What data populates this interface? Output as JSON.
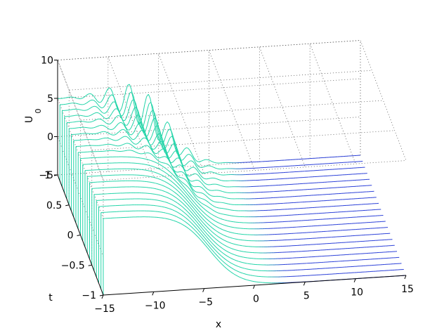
{
  "chart_data": {
    "type": "surface-waterfall",
    "title": "",
    "xlabel": "x",
    "ylabel": "t",
    "zlabel_main": "U",
    "zlabel_sub": "0",
    "xlim": [
      -15,
      15
    ],
    "tlim": [
      -1,
      1
    ],
    "zlim": [
      -5,
      10
    ],
    "x_ticks": [
      "−15",
      "−10",
      "−5",
      "0",
      "5",
      "10",
      "15"
    ],
    "t_ticks": [
      "−1",
      "−0.5",
      "0",
      "0.5",
      "1"
    ],
    "z_ticks": [
      "−5",
      "0",
      "5",
      "10"
    ],
    "x_tick_values": [
      -15,
      -10,
      -5,
      0,
      5,
      10,
      15
    ],
    "t_tick_values": [
      -1,
      -0.5,
      0,
      0.5,
      1
    ],
    "z_tick_values": [
      -5,
      0,
      5,
      10
    ],
    "grid": true,
    "colormap": "winter (green at left, blue at right)",
    "profile": {
      "left_level": 5,
      "right_level": -5,
      "front_tail_depth_x": -13.5,
      "front_center_x": -4.5,
      "front_width": 3,
      "oscillation_amplitude_max": 2.5,
      "oscillation_wavenumber": 3.2,
      "oscillation_onset_t": 0
    },
    "t_slices": [
      -1,
      -0.9,
      -0.8,
      -0.7,
      -0.6,
      -0.5,
      -0.4,
      -0.3,
      -0.2,
      -0.1,
      0,
      0.1,
      0.2,
      0.3,
      0.4,
      0.5,
      0.6,
      0.7,
      0.8,
      0.9,
      1
    ],
    "colors": {
      "left": "#22d4a8",
      "right": "#2a3fd8"
    }
  }
}
